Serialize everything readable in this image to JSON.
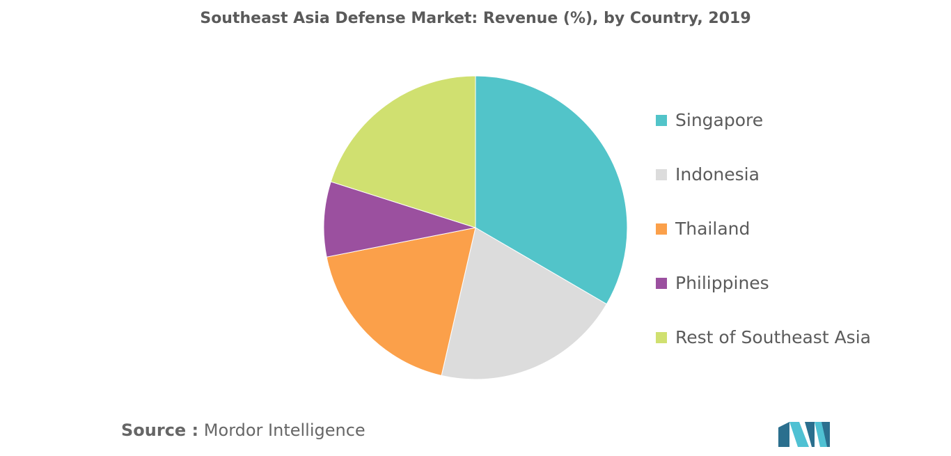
{
  "chart_data": {
    "type": "pie",
    "title": "Southeast Asia Defense Market: Revenue (%), by Country, 2019",
    "categories": [
      "Singapore",
      "Indonesia",
      "Thailand",
      "Philippines",
      "Rest of Southeast Asia"
    ],
    "values": [
      33.4,
      20.2,
      18.3,
      8.0,
      20.1
    ],
    "colors": [
      "#52c4c9",
      "#dcdcdc",
      "#fba04a",
      "#9b509f",
      "#d0e070"
    ],
    "start_angle": "12 o'clock",
    "direction": "clockwise",
    "legend_position": "right"
  },
  "source": {
    "key": "Source :",
    "value": "Mordor Intelligence"
  },
  "logo": {
    "icon": "mordor-intelligence-logo-icon",
    "colors": [
      "#2b6f8e",
      "#4fc1d3"
    ]
  }
}
